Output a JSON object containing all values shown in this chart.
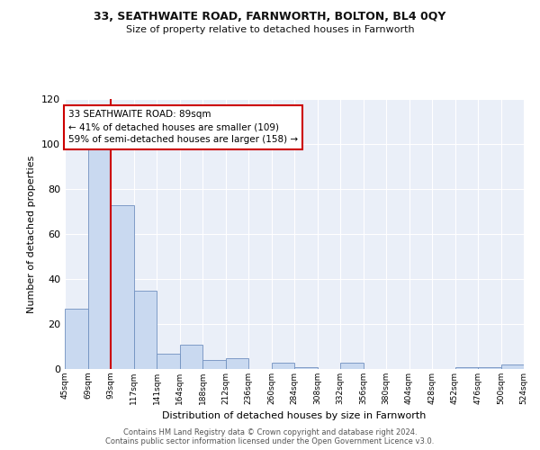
{
  "title": "33, SEATHWAITE ROAD, FARNWORTH, BOLTON, BL4 0QY",
  "subtitle": "Size of property relative to detached houses in Farnworth",
  "xlabel": "Distribution of detached houses by size in Farnworth",
  "ylabel": "Number of detached properties",
  "bar_values": [
    27,
    100,
    73,
    35,
    7,
    11,
    4,
    5,
    0,
    3,
    1,
    0,
    3,
    0,
    0,
    0,
    0,
    1,
    1,
    2
  ],
  "bar_labels": [
    "45sqm",
    "69sqm",
    "93sqm",
    "117sqm",
    "141sqm",
    "164sqm",
    "188sqm",
    "212sqm",
    "236sqm",
    "260sqm",
    "284sqm",
    "308sqm",
    "332sqm",
    "356sqm",
    "380sqm",
    "404sqm",
    "428sqm",
    "452sqm",
    "476sqm",
    "500sqm",
    "524sqm"
  ],
  "bar_color": "#c9d9f0",
  "bar_edge_color": "#7090c0",
  "vline_color": "#cc0000",
  "annotation_text": "33 SEATHWAITE ROAD: 89sqm\n← 41% of detached houses are smaller (109)\n59% of semi-detached houses are larger (158) →",
  "annotation_box_color": "#cc0000",
  "ylim": [
    0,
    120
  ],
  "yticks": [
    0,
    20,
    40,
    60,
    80,
    100,
    120
  ],
  "bg_color": "#eaeff8",
  "footer_line1": "Contains HM Land Registry data © Crown copyright and database right 2024.",
  "footer_line2": "Contains public sector information licensed under the Open Government Licence v3.0."
}
